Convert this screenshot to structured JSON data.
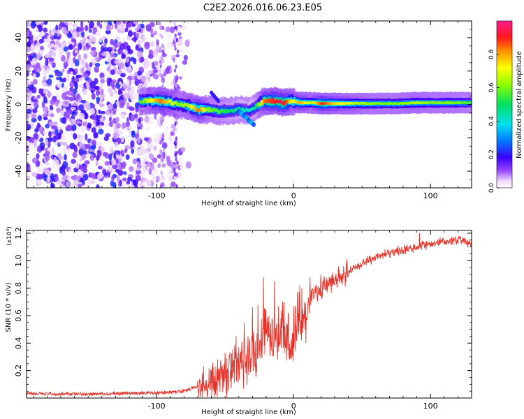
{
  "title": "C2E2.2026.016.06.23.E05",
  "colors": {
    "line": "#e8332a",
    "frame": "#000000",
    "background": "#ffffff"
  },
  "chart_data": [
    {
      "type": "heatmap",
      "xlabel": "Height of straight line (km)",
      "ylabel": "Frequency (Hz)",
      "xlim": [
        -195,
        130
      ],
      "ylim": [
        -50,
        50
      ],
      "x_ticks": [
        -100,
        0,
        100
      ],
      "x_tick_labels": [
        "-100",
        "0",
        "100"
      ],
      "y_ticks": [
        -40,
        -20,
        0,
        20,
        40
      ],
      "y_tick_labels": [
        "-40",
        "-20",
        "0",
        "20",
        "40"
      ],
      "colorbar": {
        "label": "Normalized spectral amplitude",
        "range": [
          0,
          1
        ],
        "ticks": [
          0.0,
          0.2,
          0.4,
          0.6,
          0.8
        ],
        "tick_labels": [
          "0.0",
          "0.2",
          "0.4",
          "0.6",
          "0.8"
        ]
      },
      "noise_region_x": [
        -195,
        -75
      ],
      "ridge": [
        {
          "x": -113,
          "f": 2,
          "a": 0.55
        },
        {
          "x": -105,
          "f": 2,
          "a": 0.7
        },
        {
          "x": -98,
          "f": 2,
          "a": 0.85
        },
        {
          "x": -92,
          "f": 1.5,
          "a": 0.75
        },
        {
          "x": -85,
          "f": 0,
          "a": 0.6
        },
        {
          "x": -78,
          "f": -1,
          "a": 0.65
        },
        {
          "x": -70,
          "f": -3,
          "a": 0.85
        },
        {
          "x": -63,
          "f": -3,
          "a": 0.6
        },
        {
          "x": -55,
          "f": -4,
          "a": 0.55
        },
        {
          "x": -48,
          "f": -4,
          "a": 0.5
        },
        {
          "x": -40,
          "f": -3,
          "a": 0.45
        },
        {
          "x": -33,
          "f": -4,
          "a": 0.4
        },
        {
          "x": -28,
          "f": -1,
          "a": 0.5
        },
        {
          "x": -22,
          "f": 2,
          "a": 0.85
        },
        {
          "x": -15,
          "f": 2,
          "a": 0.9
        },
        {
          "x": -8,
          "f": 1,
          "a": 0.95
        },
        {
          "x": -2,
          "f": 2,
          "a": 0.7
        },
        {
          "x": 4,
          "f": 1,
          "a": 0.8
        },
        {
          "x": 12,
          "f": 1,
          "a": 0.65
        },
        {
          "x": 20,
          "f": 0.5,
          "a": 0.9
        },
        {
          "x": 30,
          "f": 0.5,
          "a": 0.75
        },
        {
          "x": 45,
          "f": 0.5,
          "a": 0.65
        },
        {
          "x": 60,
          "f": 0.5,
          "a": 0.6
        },
        {
          "x": 75,
          "f": 0.5,
          "a": 0.6
        },
        {
          "x": 88,
          "f": 1,
          "a": 0.65
        },
        {
          "x": 100,
          "f": 1,
          "a": 0.6
        },
        {
          "x": 115,
          "f": 1,
          "a": 0.6
        },
        {
          "x": 130,
          "f": 1,
          "a": 0.55
        }
      ]
    },
    {
      "type": "line",
      "xlabel": "Height of straight line (km)",
      "ylabel": "SNR (10 * v/v)",
      "scale_note": "(x10⁴)",
      "xlim": [
        -195,
        130
      ],
      "ylim": [
        0,
        1.22
      ],
      "x_ticks": [
        -100,
        0,
        100
      ],
      "x_tick_labels": [
        "-100",
        "0",
        "100"
      ],
      "y_ticks": [
        0.2,
        0.4,
        0.6,
        0.8,
        1.0,
        1.2
      ],
      "y_tick_labels": [
        "0.2",
        "0.4",
        "0.6",
        "0.8",
        "1.0",
        "1.2"
      ],
      "series": [
        {
          "name": "SNR",
          "x": [
            -195,
            -150,
            -120,
            -90,
            -80,
            -72,
            -66,
            -60,
            -54,
            -48,
            -44,
            -40,
            -36,
            -32,
            -28,
            -24,
            -20,
            -16,
            -12,
            -8,
            -4,
            0,
            4,
            8,
            12,
            16,
            20,
            25,
            30,
            35,
            40,
            45,
            50,
            55,
            60,
            65,
            70,
            75,
            80,
            85,
            90,
            95,
            100,
            105,
            110,
            115,
            120,
            125,
            130
          ],
          "y": [
            0.03,
            0.03,
            0.035,
            0.04,
            0.05,
            0.08,
            0.1,
            0.12,
            0.16,
            0.2,
            0.24,
            0.27,
            0.3,
            0.35,
            0.38,
            0.42,
            0.48,
            0.45,
            0.46,
            0.48,
            0.44,
            0.5,
            0.58,
            0.62,
            0.7,
            0.76,
            0.8,
            0.84,
            0.86,
            0.89,
            0.92,
            0.95,
            0.98,
            1.0,
            1.02,
            1.04,
            1.06,
            1.07,
            1.08,
            1.09,
            1.1,
            1.11,
            1.12,
            1.13,
            1.13,
            1.14,
            1.15,
            1.15,
            1.12
          ],
          "spikes": [
            {
              "x": -60,
              "y": 0.2
            },
            {
              "x": -50,
              "y": 0.33
            },
            {
              "x": -42,
              "y": 0.45
            },
            {
              "x": -36,
              "y": 0.55
            },
            {
              "x": -30,
              "y": 0.66
            },
            {
              "x": -26,
              "y": 0.68
            },
            {
              "x": -22,
              "y": 0.88
            },
            {
              "x": -18,
              "y": 0.6
            },
            {
              "x": -14,
              "y": 0.85
            },
            {
              "x": -8,
              "y": 0.7
            },
            {
              "x": -4,
              "y": 0.62
            },
            {
              "x": 6,
              "y": 0.8
            },
            {
              "x": 12,
              "y": 0.88
            },
            {
              "x": 20,
              "y": 0.9
            },
            {
              "x": 92,
              "y": 1.2
            }
          ]
        }
      ]
    }
  ]
}
